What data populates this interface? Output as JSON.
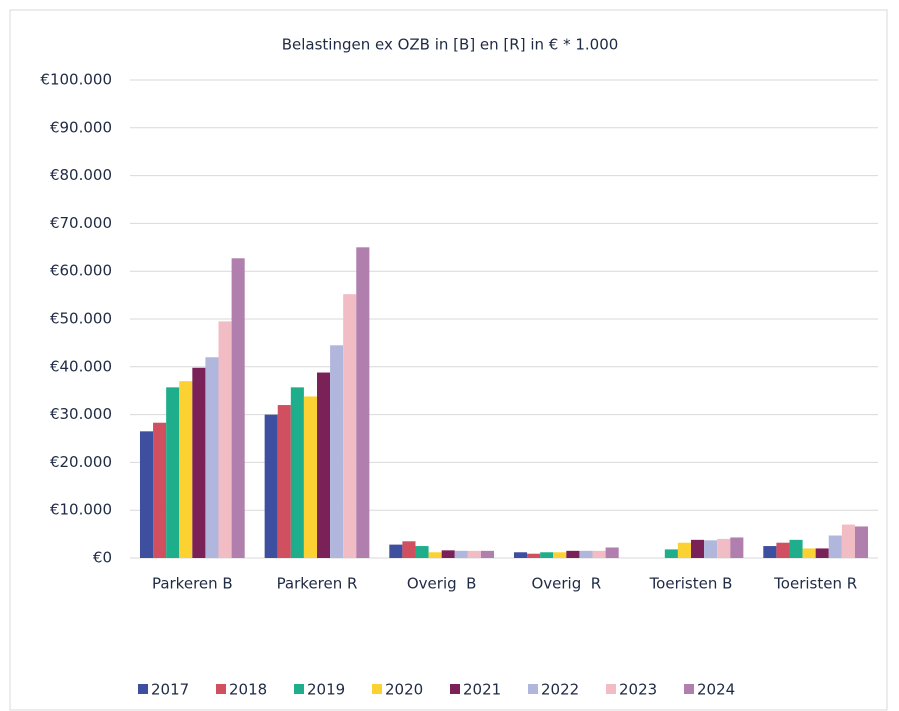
{
  "chart_data": {
    "type": "bar",
    "title": "Belastingen ex OZB in [B] en [R] in € * 1.000",
    "categories": [
      "Parkeren B",
      "Parkeren R",
      "Overig  B",
      "Overig  R",
      "Toeristen B",
      "Toeristen R"
    ],
    "series": [
      {
        "name": "2017",
        "color": "#3f4fa0",
        "values": [
          26500,
          30000,
          2800,
          1200,
          0,
          2500
        ]
      },
      {
        "name": "2018",
        "color": "#d1505f",
        "values": [
          28300,
          32000,
          3500,
          900,
          0,
          3200
        ]
      },
      {
        "name": "2019",
        "color": "#1fae8c",
        "values": [
          35700,
          35700,
          2500,
          1200,
          1800,
          3800
        ]
      },
      {
        "name": "2020",
        "color": "#fcd232",
        "values": [
          37000,
          33800,
          1200,
          1200,
          3200,
          2000
        ]
      },
      {
        "name": "2021",
        "color": "#7a2157",
        "values": [
          39800,
          38800,
          1600,
          1500,
          3800,
          2000
        ]
      },
      {
        "name": "2022",
        "color": "#b0b6dc",
        "values": [
          42000,
          44500,
          1500,
          1500,
          3700,
          4700
        ]
      },
      {
        "name": "2023",
        "color": "#f2bcc5",
        "values": [
          49500,
          55200,
          1500,
          1500,
          4000,
          7000
        ]
      },
      {
        "name": "2024",
        "color": "#b07fae",
        "values": [
          62700,
          65000,
          1500,
          2200,
          4300,
          6600
        ]
      }
    ],
    "ylim": [
      0,
      100000
    ],
    "yticks": [
      {
        "value": 0,
        "label": "€0"
      },
      {
        "value": 10000,
        "label": "€10.000"
      },
      {
        "value": 20000,
        "label": "€20.000"
      },
      {
        "value": 30000,
        "label": "€30.000"
      },
      {
        "value": 40000,
        "label": "€40.000"
      },
      {
        "value": 50000,
        "label": "€50.000"
      },
      {
        "value": 60000,
        "label": "€60.000"
      },
      {
        "value": 70000,
        "label": "€70.000"
      },
      {
        "value": 80000,
        "label": "€80.000"
      },
      {
        "value": 90000,
        "label": "€90.000"
      },
      {
        "value": 100000,
        "label": "€100.000"
      }
    ],
    "grid": true,
    "legend": "bottom"
  }
}
